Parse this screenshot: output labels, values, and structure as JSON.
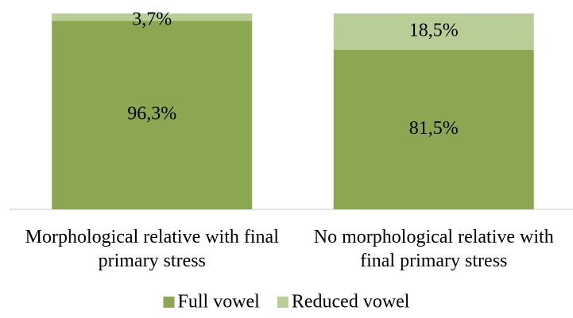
{
  "chart_data": {
    "type": "stacked_bar",
    "categories": [
      "Morphological relative with final primary stress",
      "No morphological relative with final primary stress"
    ],
    "series": [
      {
        "name": "Full vowel",
        "color": "#8ca752",
        "values": [
          96.3,
          81.5
        ],
        "value_labels": [
          "96,3%",
          "81,5%"
        ]
      },
      {
        "name": "Reduced vowel",
        "color": "#b9ce97",
        "values": [
          3.7,
          18.5
        ],
        "value_labels": [
          "3,7%",
          "18,5%"
        ]
      }
    ],
    "ylim": [
      0,
      100
    ]
  }
}
